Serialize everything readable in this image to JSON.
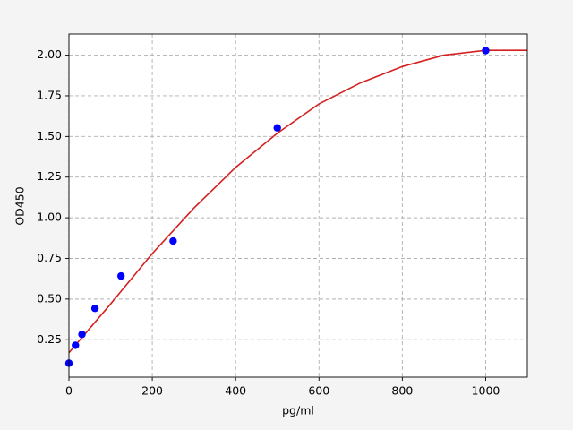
{
  "chart_data": {
    "type": "scatter",
    "xlabel": "pg/ml",
    "ylabel": "OD450",
    "xlim": [
      0,
      1100
    ],
    "ylim": [
      0.02,
      2.13
    ],
    "xticks": [
      0,
      200,
      400,
      600,
      800,
      1000
    ],
    "yticks": [
      0.25,
      {
        "value": 0.5,
        "label": "0.50"
      },
      0.75,
      {
        "value": 1,
        "label": "1.00"
      },
      1.25,
      {
        "value": 1.5,
        "label": "1.50"
      },
      1.75,
      {
        "value": 2,
        "label": "2.00"
      }
    ],
    "grid": true,
    "series": [
      {
        "type": "line",
        "color": "#d62020",
        "x": [
          0,
          100,
          200,
          300,
          400,
          500,
          600,
          700,
          800,
          900,
          1000,
          1100
        ],
        "values": [
          0.17,
          0.47,
          0.78,
          1.06,
          1.31,
          1.52,
          1.7,
          1.83,
          1.93,
          2.0,
          2.03,
          2.03
        ]
      },
      {
        "type": "scatter",
        "color": "#0000ff",
        "x": [
          0,
          15.6,
          31.25,
          62.5,
          125,
          250,
          500,
          1000
        ],
        "values": [
          0.106,
          0.216,
          0.283,
          0.443,
          0.642,
          0.857,
          1.553,
          2.028
        ]
      }
    ]
  }
}
